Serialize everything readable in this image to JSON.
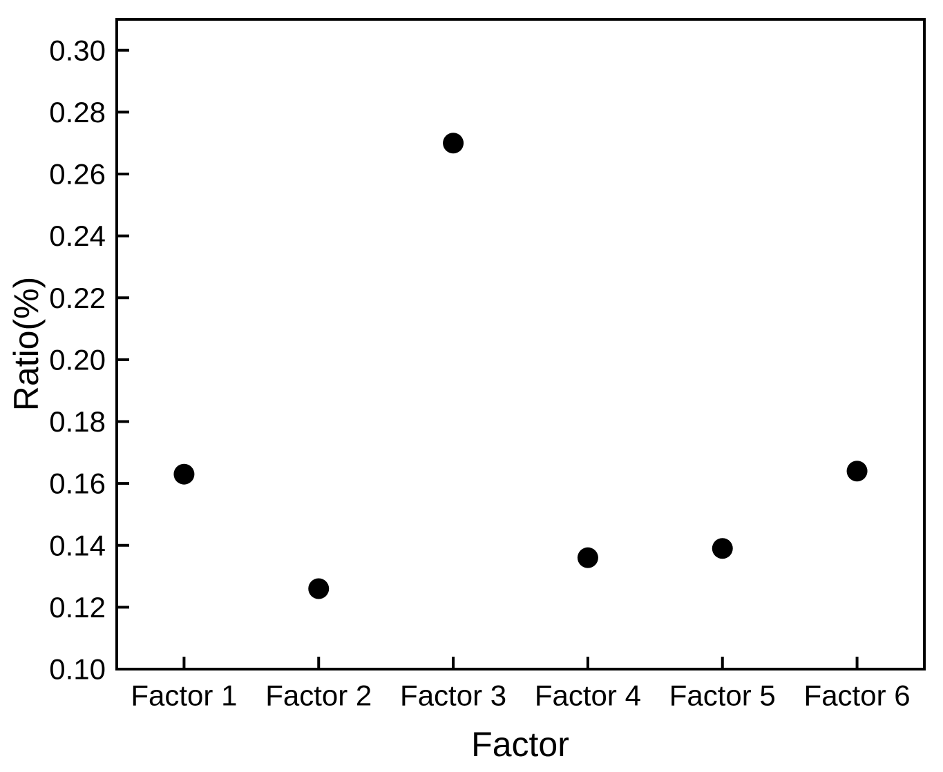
{
  "figure": {
    "background_color": "#ffffff",
    "axis_color": "#000000",
    "marker_color": "#000000"
  },
  "chart_data": {
    "type": "scatter",
    "title": "",
    "xlabel": "Factor",
    "ylabel": "Ratio(%)",
    "categories": [
      "Factor 1",
      "Factor 2",
      "Factor 3",
      "Factor 4",
      "Factor 5",
      "Factor 6"
    ],
    "values": [
      0.163,
      0.126,
      0.27,
      0.136,
      0.139,
      0.164
    ],
    "ylim": [
      0.1,
      0.31
    ],
    "yticks": [
      0.1,
      0.12,
      0.14,
      0.16,
      0.18,
      0.2,
      0.22,
      0.24,
      0.26,
      0.28,
      0.3
    ],
    "ytick_labels": [
      "0.10",
      "0.12",
      "0.14",
      "0.16",
      "0.18",
      "0.20",
      "0.22",
      "0.24",
      "0.26",
      "0.28",
      "0.30"
    ],
    "grid": false,
    "legend": false,
    "marker": {
      "shape": "circle",
      "color": "#000000"
    }
  }
}
